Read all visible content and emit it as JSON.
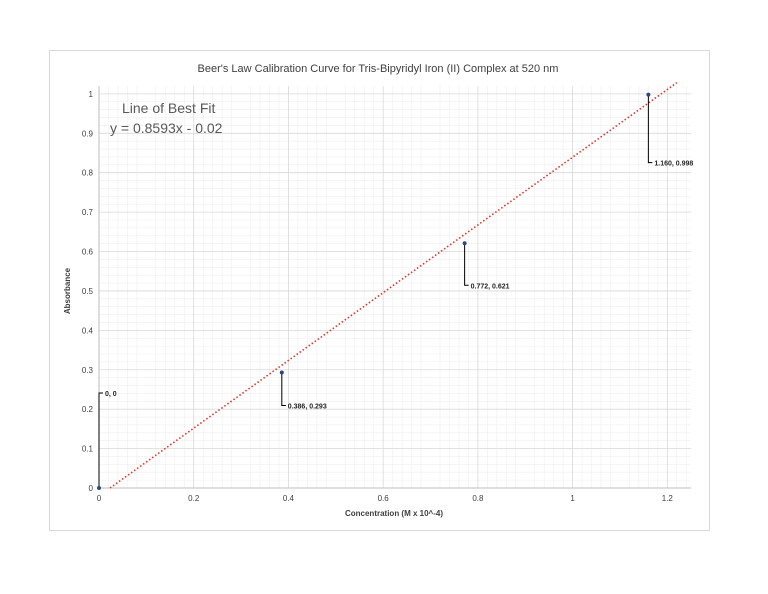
{
  "chart_data": {
    "type": "scatter",
    "title": "Beer's Law Calibration Curve for Tris-Bipyridyl Iron (II) Complex at 520 nm",
    "xlabel": "Concentration (M x 10^-4)",
    "ylabel": "Absorbance",
    "xlim": [
      0,
      1.25
    ],
    "ylim": [
      0,
      1.02
    ],
    "x_ticks": [
      "0",
      "0.2",
      "0.4",
      "0.6",
      "0.8",
      "1",
      "1.2"
    ],
    "y_ticks": [
      "0",
      "0.1",
      "0.2",
      "0.3",
      "0.4",
      "0.5",
      "0.6",
      "0.7",
      "0.8",
      "0.9",
      "1"
    ],
    "grid": true,
    "points": [
      {
        "x": 0,
        "y": 0,
        "label": "0, 0"
      },
      {
        "x": 0.386,
        "y": 0.293,
        "label": "0.386, 0.293"
      },
      {
        "x": 0.772,
        "y": 0.621,
        "label": "0.772, 0.621"
      },
      {
        "x": 1.16,
        "y": 0.998,
        "label": "1.160, 0.998"
      }
    ],
    "trendline": {
      "slope": 0.8593,
      "intercept": -0.02,
      "x_range": [
        0,
        1.22
      ],
      "label_title": "Line of Best Fit",
      "label_equation": "y = 0.8593x - 0.02"
    },
    "colors": {
      "marker": "#2e4a7d",
      "trendline": "#e0352b",
      "grid_major": "#d9d9d9",
      "grid_minor": "#efefef"
    }
  }
}
